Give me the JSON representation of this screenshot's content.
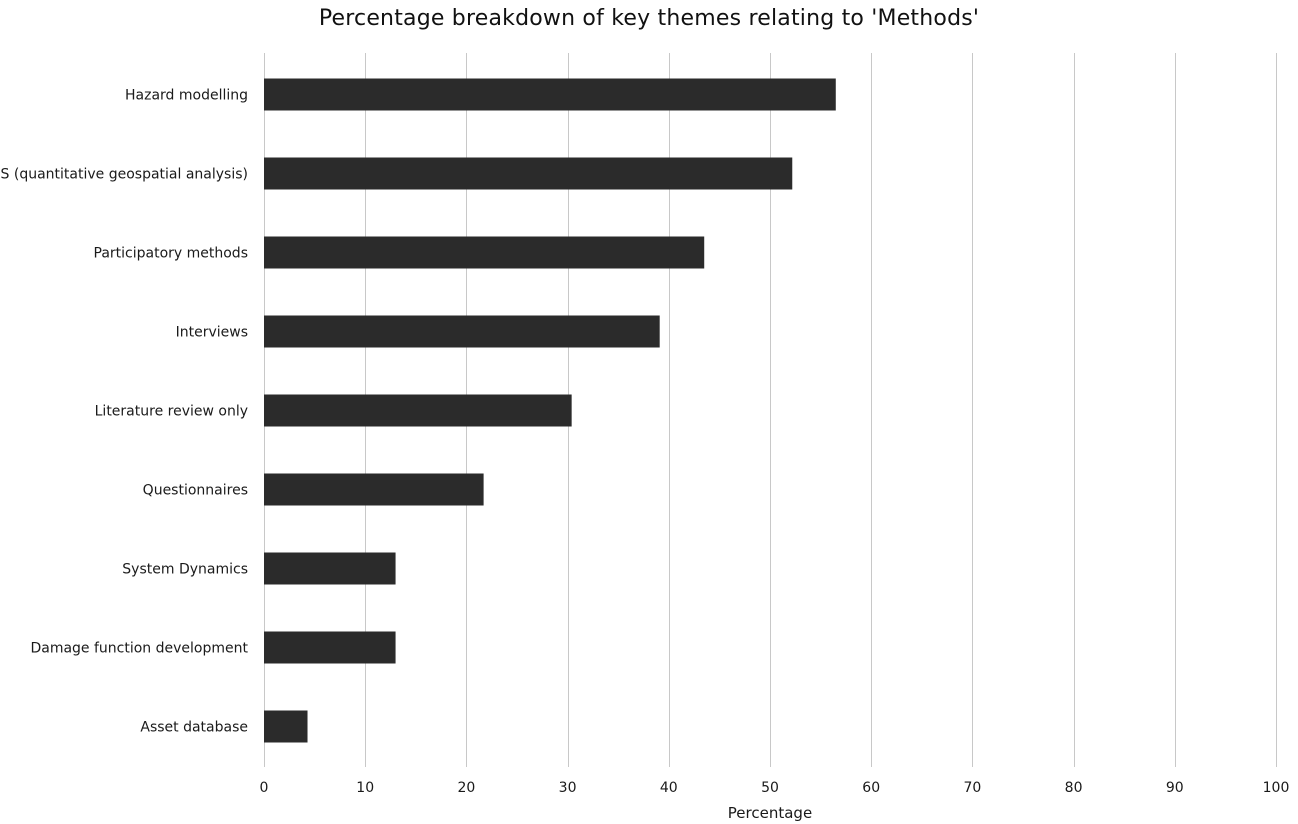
{
  "chart_data": {
    "type": "bar",
    "orientation": "horizontal",
    "title": "Percentage breakdown of key themes relating to 'Methods'",
    "xlabel": "Percentage",
    "ylabel": "",
    "xlim": [
      0,
      100
    ],
    "xticks": [
      0,
      10,
      20,
      30,
      40,
      50,
      60,
      70,
      80,
      90,
      100
    ],
    "grid": "vertical",
    "legend": "none",
    "bar_color": "#2b2b2b",
    "grid_color": "#c8c8c8",
    "categories": [
      "Hazard modelling",
      "GIS (quantitative geospatial analysis)",
      "Participatory methods",
      "Interviews",
      "Literature review only",
      "Questionnaires",
      "System Dynamics",
      "Damage function development",
      "Asset database"
    ],
    "values": [
      56.5,
      52.2,
      43.5,
      39.1,
      30.4,
      21.7,
      13.0,
      13.0,
      4.3
    ]
  }
}
